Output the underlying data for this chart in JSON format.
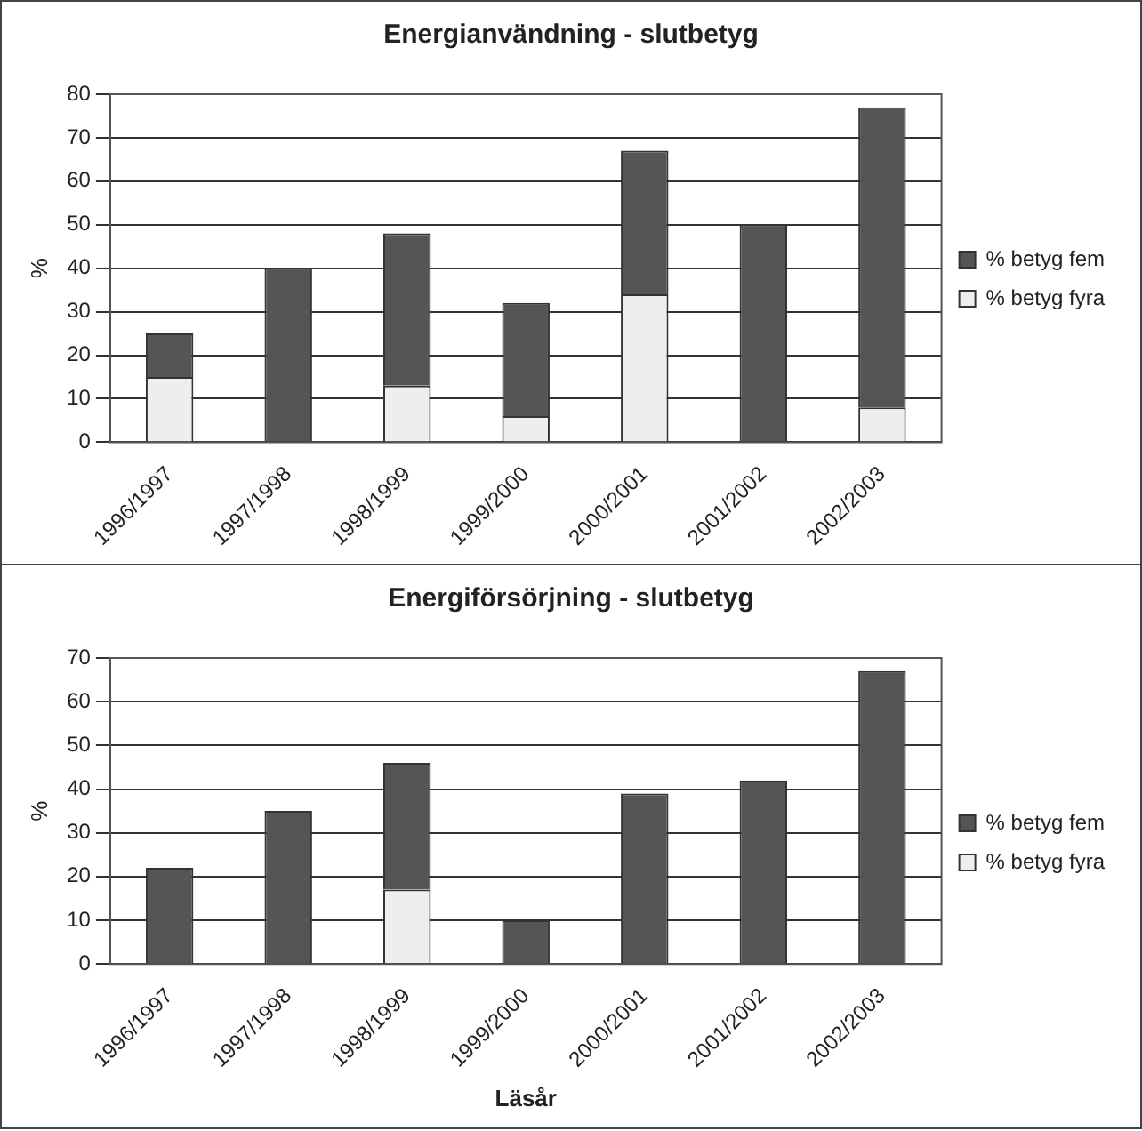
{
  "chart_data": [
    {
      "type": "bar",
      "title": "Energianvändning - slutbetyg",
      "ylabel": "%",
      "categories": [
        "1996/1997",
        "1997/1998",
        "1998/1999",
        "1999/2000",
        "2000/2001",
        "2001/2002",
        "2002/2003"
      ],
      "stacked": true,
      "series": [
        {
          "name": "% betyg fyra",
          "color": "#eeeeee",
          "values": [
            15,
            0,
            13,
            6,
            34,
            0,
            8
          ]
        },
        {
          "name": "% betyg fem",
          "color": "#555555",
          "values": [
            10,
            40,
            35,
            26,
            33,
            50,
            69
          ]
        }
      ],
      "ylim": [
        0,
        80
      ],
      "yticks": [
        0,
        10,
        20,
        30,
        40,
        50,
        60,
        70,
        80
      ],
      "grid": "y",
      "legend": "right"
    },
    {
      "type": "bar",
      "title": "Energiförsörjning - slutbetyg",
      "xlabel": "Läsår",
      "ylabel": "%",
      "categories": [
        "1996/1997",
        "1997/1998",
        "1998/1999",
        "1999/2000",
        "2000/2001",
        "2001/2002",
        "2002/2003"
      ],
      "stacked": true,
      "series": [
        {
          "name": "% betyg fyra",
          "color": "#eeeeee",
          "values": [
            0,
            0,
            17,
            0,
            0,
            0,
            0
          ]
        },
        {
          "name": "% betyg fem",
          "color": "#555555",
          "values": [
            22,
            35,
            29,
            10,
            39,
            42,
            67
          ]
        }
      ],
      "ylim": [
        0,
        70
      ],
      "yticks": [
        0,
        10,
        20,
        30,
        40,
        50,
        60,
        70
      ],
      "grid": "y",
      "legend": "right"
    }
  ]
}
